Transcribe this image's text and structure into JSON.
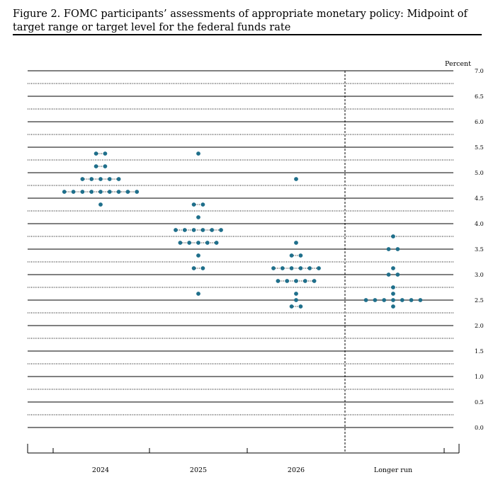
{
  "title": "Figure 2.  FOMC participants’ assessments of appropriate monetary policy: Midpoint of target range or target level for the federal funds rate",
  "accent_color": "#1f6f8b",
  "chart_data": {
    "type": "scatter",
    "ylabel": "Percent",
    "ylim": [
      0,
      7
    ],
    "y_ticks": [
      "7.0",
      "6.5",
      "6.0",
      "5.5",
      "5.0",
      "4.5",
      "4.0",
      "3.5",
      "3.0",
      "2.5",
      "2.0",
      "1.5",
      "1.0",
      "0.5",
      "0.0"
    ],
    "minor_gridlines": "dotted, every 0.25",
    "categories": [
      "2024",
      "2025",
      "2026",
      "Longer run"
    ],
    "points": [
      {
        "category": "2024",
        "y": 5.375,
        "count": 2
      },
      {
        "category": "2024",
        "y": 5.125,
        "count": 2
      },
      {
        "category": "2024",
        "y": 4.875,
        "count": 5
      },
      {
        "category": "2024",
        "y": 4.625,
        "count": 9
      },
      {
        "category": "2024",
        "y": 4.375,
        "count": 1
      },
      {
        "category": "2025",
        "y": 5.375,
        "count": 1
      },
      {
        "category": "2025",
        "y": 4.375,
        "count": 2
      },
      {
        "category": "2025",
        "y": 4.125,
        "count": 1
      },
      {
        "category": "2025",
        "y": 3.875,
        "count": 6
      },
      {
        "category": "2025",
        "y": 3.625,
        "count": 5
      },
      {
        "category": "2025",
        "y": 3.375,
        "count": 1
      },
      {
        "category": "2025",
        "y": 3.125,
        "count": 2
      },
      {
        "category": "2025",
        "y": 2.625,
        "count": 1
      },
      {
        "category": "2026",
        "y": 4.875,
        "count": 1
      },
      {
        "category": "2026",
        "y": 3.625,
        "count": 1
      },
      {
        "category": "2026",
        "y": 3.375,
        "count": 2
      },
      {
        "category": "2026",
        "y": 3.125,
        "count": 6
      },
      {
        "category": "2026",
        "y": 2.875,
        "count": 5
      },
      {
        "category": "2026",
        "y": 2.625,
        "count": 1
      },
      {
        "category": "2026",
        "y": 2.5,
        "count": 1
      },
      {
        "category": "2026",
        "y": 2.375,
        "count": 2
      },
      {
        "category": "Longer run",
        "y": 3.75,
        "count": 1
      },
      {
        "category": "Longer run",
        "y": 3.5,
        "count": 2
      },
      {
        "category": "Longer run",
        "y": 3.125,
        "count": 1
      },
      {
        "category": "Longer run",
        "y": 3.0,
        "count": 2
      },
      {
        "category": "Longer run",
        "y": 2.75,
        "count": 1
      },
      {
        "category": "Longer run",
        "y": 2.625,
        "count": 1
      },
      {
        "category": "Longer run",
        "y": 2.5,
        "count": 7
      },
      {
        "category": "Longer run",
        "y": 2.375,
        "count": 1
      }
    ]
  }
}
